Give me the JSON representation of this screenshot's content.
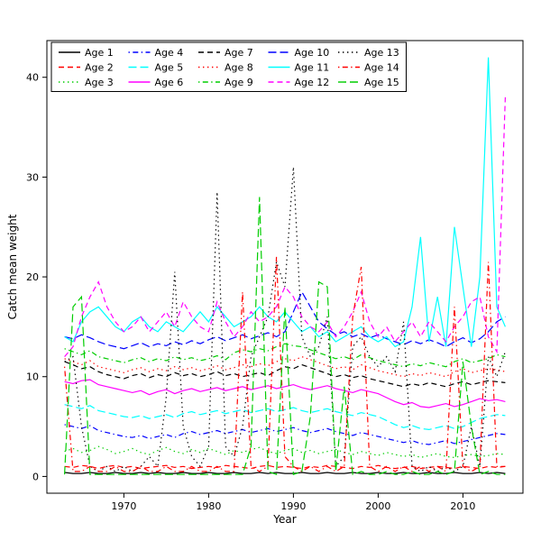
{
  "chart_data": {
    "type": "line",
    "title": "",
    "xlabel": "Year",
    "ylabel": "Catch mean weight",
    "xlim": [
      1963,
      2015
    ],
    "ylim": [
      0,
      42
    ],
    "xticks": [
      1970,
      1980,
      1990,
      2000,
      2010
    ],
    "yticks": [
      0,
      10,
      20,
      30,
      40
    ],
    "grid": false,
    "legend_position": "top-left",
    "legend_columns": 5,
    "legend_rows": 3,
    "x": [
      1963,
      1964,
      1965,
      1966,
      1967,
      1968,
      1969,
      1970,
      1971,
      1972,
      1973,
      1974,
      1975,
      1976,
      1977,
      1978,
      1979,
      1980,
      1981,
      1982,
      1983,
      1984,
      1985,
      1986,
      1987,
      1988,
      1989,
      1990,
      1991,
      1992,
      1993,
      1994,
      1995,
      1996,
      1997,
      1998,
      1999,
      2000,
      2001,
      2002,
      2003,
      2004,
      2005,
      2006,
      2007,
      2008,
      2009,
      2010,
      2011,
      2012,
      2013,
      2014,
      2015
    ],
    "series": [
      {
        "name": "Age 1",
        "color": "#000000",
        "linetype": "solid",
        "values": [
          0.4,
          0.3,
          0.3,
          0.4,
          0.3,
          0.3,
          0.4,
          0.3,
          0.3,
          0.4,
          0.3,
          0.4,
          0.3,
          0.3,
          0.4,
          0.3,
          0.3,
          0.4,
          0.3,
          0.3,
          0.4,
          0.3,
          0.3,
          0.4,
          0.3,
          0.4,
          0.3,
          0.3,
          0.4,
          0.3,
          0.3,
          0.4,
          0.3,
          0.3,
          0.4,
          0.3,
          0.3,
          0.4,
          0.3,
          0.3,
          0.4,
          0.3,
          0.3,
          0.4,
          0.3,
          0.3,
          0.4,
          0.3,
          0.3,
          0.4,
          0.3,
          0.4,
          0.3
        ]
      },
      {
        "name": "Age 2",
        "color": "#FF0000",
        "linetype": "dashed",
        "values": [
          1.0,
          0.9,
          1.1,
          1.0,
          0.8,
          1.0,
          1.1,
          0.9,
          1.0,
          0.8,
          0.9,
          1.0,
          1.1,
          0.9,
          1.0,
          0.8,
          0.9,
          1.0,
          0.9,
          1.1,
          1.0,
          0.9,
          0.8,
          1.0,
          1.1,
          0.9,
          1.0,
          0.9,
          0.8,
          1.0,
          0.9,
          1.1,
          1.0,
          0.9,
          0.8,
          1.0,
          0.9,
          1.1,
          0.9,
          0.8,
          0.9,
          1.0,
          0.8,
          0.9,
          1.0,
          0.9,
          0.8,
          1.0,
          0.9,
          0.8,
          1.0,
          0.9,
          1.0
        ]
      },
      {
        "name": "Age 3",
        "color": "#00CD00",
        "linetype": "dotted",
        "values": [
          2.5,
          2.8,
          2.4,
          2.6,
          3.0,
          2.7,
          2.3,
          2.5,
          2.8,
          2.4,
          2.2,
          2.6,
          2.9,
          2.5,
          2.3,
          2.7,
          2.4,
          2.8,
          2.5,
          2.2,
          2.6,
          2.4,
          2.7,
          2.9,
          2.5,
          2.3,
          2.6,
          2.8,
          2.4,
          2.6,
          2.3,
          2.5,
          2.7,
          2.4,
          2.2,
          2.5,
          2.3,
          2.1,
          2.4,
          2.2,
          2.0,
          2.2,
          1.9,
          2.1,
          2.3,
          2.0,
          1.9,
          2.1,
          2.2,
          2.0,
          2.1,
          2.3,
          2.2
        ]
      },
      {
        "name": "Age 4",
        "color": "#0000FF",
        "linetype": "dotdash",
        "values": [
          5.2,
          5.0,
          4.8,
          5.1,
          4.6,
          4.4,
          4.2,
          4.0,
          3.9,
          4.1,
          3.8,
          4.0,
          4.2,
          3.9,
          4.3,
          4.5,
          4.2,
          4.4,
          4.6,
          4.3,
          4.5,
          4.7,
          4.4,
          4.6,
          4.8,
          4.5,
          4.7,
          4.9,
          4.6,
          4.4,
          4.6,
          4.8,
          4.5,
          4.3,
          4.1,
          4.4,
          4.2,
          4.0,
          3.8,
          3.6,
          3.4,
          3.6,
          3.3,
          3.2,
          3.4,
          3.6,
          3.3,
          3.5,
          3.7,
          3.9,
          4.1,
          4.3,
          4.2
        ]
      },
      {
        "name": "Age 5",
        "color": "#00FFFF",
        "linetype": "longdash",
        "values": [
          7.2,
          7.0,
          6.8,
          7.1,
          6.6,
          6.4,
          6.2,
          6.0,
          5.9,
          6.1,
          5.8,
          6.0,
          6.2,
          5.9,
          6.3,
          6.5,
          6.2,
          6.4,
          6.6,
          6.3,
          6.5,
          6.7,
          6.4,
          6.6,
          6.8,
          6.5,
          6.7,
          6.9,
          6.6,
          6.4,
          6.6,
          6.8,
          6.5,
          6.3,
          6.1,
          6.4,
          6.2,
          6.0,
          5.6,
          5.2,
          4.9,
          5.1,
          4.8,
          4.7,
          4.9,
          5.1,
          4.8,
          5.0,
          5.4,
          5.8,
          6.0,
          6.2,
          6.1
        ]
      },
      {
        "name": "Age 6",
        "color": "#FF00FF",
        "linetype": "solid",
        "values": [
          9.5,
          9.3,
          9.6,
          9.7,
          9.2,
          9.0,
          8.8,
          8.6,
          8.4,
          8.6,
          8.2,
          8.5,
          8.7,
          8.3,
          8.6,
          8.8,
          8.5,
          8.7,
          8.9,
          8.6,
          8.8,
          9.0,
          8.7,
          8.9,
          9.1,
          8.8,
          9.0,
          9.2,
          8.9,
          8.7,
          8.9,
          9.1,
          8.8,
          8.6,
          8.4,
          8.7,
          8.5,
          8.3,
          7.9,
          7.5,
          7.2,
          7.4,
          7.0,
          6.9,
          7.1,
          7.3,
          7.0,
          7.2,
          7.5,
          7.8,
          7.6,
          7.7,
          7.5
        ]
      },
      {
        "name": "Age 7",
        "color": "#000000",
        "linetype": "dashed",
        "values": [
          11.5,
          11.2,
          10.8,
          11.0,
          10.5,
          10.2,
          10.0,
          9.8,
          10.1,
          10.3,
          9.9,
          10.2,
          10.0,
          10.4,
          10.1,
          10.3,
          10.0,
          10.2,
          10.5,
          10.1,
          10.3,
          10.0,
          10.2,
          10.4,
          10.1,
          10.6,
          11.0,
          10.8,
          11.2,
          10.9,
          10.6,
          10.3,
          10.0,
          10.2,
          9.9,
          10.1,
          9.8,
          9.6,
          9.4,
          9.2,
          9.0,
          9.3,
          9.1,
          9.4,
          9.2,
          9.0,
          9.3,
          9.5,
          9.2,
          9.4,
          9.6,
          9.5,
          9.4
        ]
      },
      {
        "name": "Age 8",
        "color": "#FF0000",
        "linetype": "dotted",
        "values": [
          11.8,
          11.5,
          11.2,
          11.6,
          11.0,
          10.8,
          10.6,
          10.4,
          10.7,
          10.9,
          10.5,
          10.8,
          10.6,
          11.0,
          10.7,
          10.9,
          10.6,
          10.8,
          11.1,
          10.7,
          10.9,
          11.2,
          11.0,
          11.3,
          11.1,
          11.5,
          11.8,
          11.6,
          12.0,
          11.7,
          11.4,
          11.1,
          10.8,
          11.0,
          10.7,
          11.2,
          10.9,
          10.6,
          10.4,
          10.2,
          10.0,
          10.3,
          10.1,
          10.4,
          10.2,
          10.0,
          10.5,
          10.8,
          10.4,
          10.6,
          10.8,
          10.7,
          10.5
        ]
      },
      {
        "name": "Age 9",
        "color": "#00CD00",
        "linetype": "dotdash",
        "values": [
          12.8,
          12.5,
          12.2,
          12.6,
          12.0,
          11.8,
          11.6,
          11.4,
          11.7,
          11.9,
          11.5,
          11.8,
          11.6,
          12.0,
          11.7,
          11.9,
          11.6,
          11.8,
          12.1,
          11.7,
          12.4,
          12.7,
          12.5,
          12.8,
          12.6,
          13.0,
          13.3,
          13.1,
          13.0,
          12.7,
          12.4,
          12.1,
          11.8,
          12.0,
          11.7,
          12.2,
          11.9,
          11.6,
          11.4,
          11.2,
          11.0,
          11.3,
          11.1,
          11.4,
          11.2,
          11.0,
          11.5,
          11.8,
          11.4,
          11.6,
          11.8,
          12.2,
          12.0
        ]
      },
      {
        "name": "Age 10",
        "color": "#0000FF",
        "linetype": "longdash",
        "values": [
          14.0,
          13.8,
          14.2,
          13.9,
          13.5,
          13.2,
          13.0,
          12.8,
          13.1,
          13.4,
          13.0,
          13.3,
          13.1,
          13.5,
          13.2,
          13.6,
          13.3,
          13.7,
          14.0,
          13.6,
          13.9,
          14.2,
          13.8,
          14.1,
          14.4,
          14.0,
          14.5,
          16.5,
          18.5,
          17.0,
          15.5,
          14.8,
          14.2,
          14.5,
          14.0,
          14.3,
          13.9,
          14.2,
          13.8,
          13.5,
          13.2,
          13.6,
          13.3,
          13.7,
          13.4,
          13.0,
          13.5,
          13.9,
          13.4,
          13.8,
          14.5,
          15.5,
          16.0
        ]
      },
      {
        "name": "Age 11",
        "color": "#00FFFF",
        "linetype": "solid",
        "values": [
          14.0,
          13.5,
          15.5,
          16.5,
          17.0,
          16.0,
          15.0,
          14.5,
          15.5,
          16.0,
          15.0,
          14.5,
          15.5,
          15.0,
          14.5,
          15.5,
          16.5,
          15.5,
          17.0,
          16.0,
          15.0,
          15.5,
          16.0,
          17.0,
          16.0,
          15.5,
          16.5,
          15.5,
          14.5,
          15.0,
          14.0,
          14.5,
          13.5,
          14.0,
          14.5,
          15.0,
          14.0,
          13.5,
          14.0,
          13.0,
          13.5,
          17.0,
          24.0,
          13.5,
          18.0,
          13.0,
          25.0,
          19.0,
          13.0,
          20.0,
          42.0,
          17.0,
          15.0
        ]
      },
      {
        "name": "Age 12",
        "color": "#FF00FF",
        "linetype": "dashed",
        "values": [
          12.0,
          13.0,
          16.0,
          18.0,
          19.5,
          17.0,
          15.5,
          14.5,
          15.0,
          16.0,
          14.5,
          15.5,
          16.5,
          15.0,
          17.5,
          16.0,
          15.0,
          14.5,
          17.5,
          15.5,
          14.0,
          15.0,
          16.5,
          15.5,
          16.0,
          17.0,
          19.0,
          18.0,
          16.0,
          15.0,
          14.5,
          15.5,
          14.0,
          15.0,
          16.5,
          18.5,
          15.5,
          14.0,
          15.0,
          13.5,
          14.5,
          15.5,
          14.0,
          15.5,
          14.5,
          13.5,
          15.0,
          16.0,
          17.5,
          18.0,
          14.0,
          12.5,
          38.0
        ]
      },
      {
        "name": "Age 13",
        "color": "#000000",
        "linetype": "dotted",
        "values": [
          11.5,
          12.0,
          5.0,
          1.0,
          0.5,
          1.0,
          0.5,
          1.0,
          0.5,
          1.0,
          2.0,
          1.0,
          8.0,
          20.5,
          5.0,
          2.0,
          1.0,
          3.0,
          28.5,
          3.0,
          2.0,
          5.0,
          12.0,
          14.0,
          16.0,
          21.5,
          19.0,
          31.0,
          14.0,
          12.0,
          13.0,
          16.0,
          1.0,
          2.0,
          13.0,
          14.0,
          12.0,
          11.0,
          12.0,
          10.5,
          15.5,
          1.0,
          0.5,
          1.0,
          0.5,
          1.0,
          0.5,
          1.0,
          5.0,
          1.0,
          12.0,
          10.0,
          12.5
        ]
      },
      {
        "name": "Age 14",
        "color": "#FF0000",
        "linetype": "dotdash",
        "values": [
          11.0,
          0.5,
          0.5,
          1.0,
          0.5,
          0.5,
          1.0,
          0.5,
          0.5,
          1.0,
          0.5,
          0.5,
          1.0,
          0.5,
          0.5,
          1.0,
          0.5,
          0.5,
          1.0,
          0.5,
          0.5,
          18.5,
          1.0,
          0.5,
          1.0,
          22.0,
          2.0,
          1.0,
          0.5,
          1.0,
          0.5,
          1.0,
          0.5,
          1.0,
          16.0,
          21.0,
          1.0,
          0.5,
          1.0,
          0.5,
          1.0,
          0.5,
          1.0,
          0.5,
          1.0,
          0.5,
          17.0,
          1.0,
          0.5,
          1.0,
          21.5,
          1.0,
          1.0
        ]
      },
      {
        "name": "Age 15",
        "color": "#00CD00",
        "linetype": "longdash",
        "values": [
          0.2,
          17.0,
          18.0,
          0.2,
          0.2,
          0.2,
          0.2,
          0.2,
          0.2,
          0.2,
          0.2,
          0.2,
          0.2,
          0.2,
          0.2,
          0.2,
          0.2,
          0.2,
          0.2,
          0.2,
          0.2,
          0.2,
          3.0,
          28.0,
          0.5,
          0.2,
          17.0,
          0.2,
          0.5,
          6.0,
          19.5,
          19.0,
          0.5,
          9.0,
          0.2,
          0.5,
          0.2,
          0.2,
          0.5,
          0.2,
          0.2,
          0.5,
          0.2,
          0.2,
          0.5,
          0.2,
          0.5,
          11.5,
          5.0,
          0.2,
          0.5,
          0.2,
          0.2
        ]
      }
    ]
  }
}
